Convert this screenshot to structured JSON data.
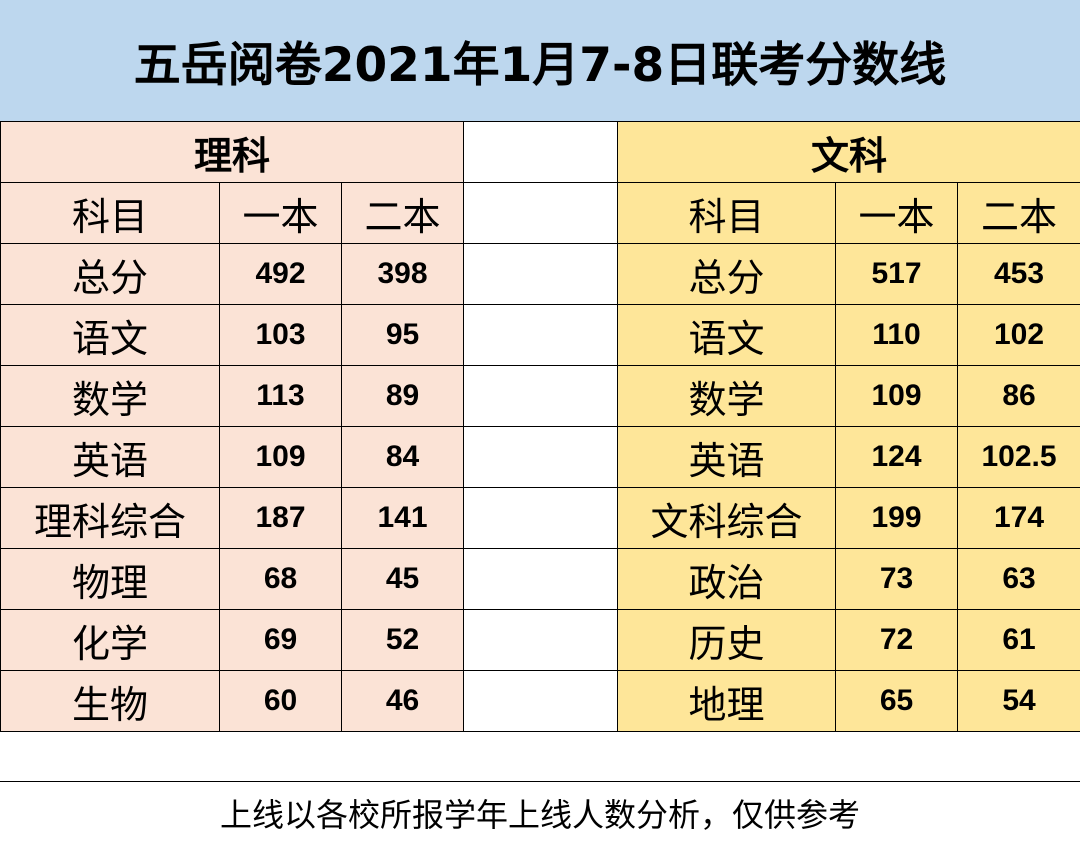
{
  "title": "五岳阅卷2021年1月7-8日联考分数线",
  "science": {
    "label": "理科",
    "col_subject": "科目",
    "col_first": "一本",
    "col_second": "二本",
    "rows": [
      {
        "subject": "总分",
        "first": "492",
        "second": "398"
      },
      {
        "subject": "语文",
        "first": "103",
        "second": "95"
      },
      {
        "subject": "数学",
        "first": "113",
        "second": "89"
      },
      {
        "subject": "英语",
        "first": "109",
        "second": "84"
      },
      {
        "subject": "理科综合",
        "first": "187",
        "second": "141"
      },
      {
        "subject": "物理",
        "first": "68",
        "second": "45"
      },
      {
        "subject": "化学",
        "first": "69",
        "second": "52"
      },
      {
        "subject": "生物",
        "first": "60",
        "second": "46"
      }
    ]
  },
  "liberal": {
    "label": "文科",
    "col_subject": "科目",
    "col_first": "一本",
    "col_second": "二本",
    "rows": [
      {
        "subject": "总分",
        "first": "517",
        "second": "453"
      },
      {
        "subject": "语文",
        "first": "110",
        "second": "102"
      },
      {
        "subject": "数学",
        "first": "109",
        "second": "86"
      },
      {
        "subject": "英语",
        "first": "124",
        "second": "102.5"
      },
      {
        "subject": "文科综合",
        "first": "199",
        "second": "174"
      },
      {
        "subject": "政治",
        "first": "73",
        "second": "63"
      },
      {
        "subject": "历史",
        "first": "72",
        "second": "61"
      },
      {
        "subject": "地理",
        "first": "65",
        "second": "54"
      }
    ]
  },
  "footer": "上线以各校所报学年上线人数分析，仅供参考",
  "colors": {
    "title_bg": "#bdd7ee",
    "science_bg": "#fbe3d6",
    "liberal_bg": "#fee699"
  }
}
